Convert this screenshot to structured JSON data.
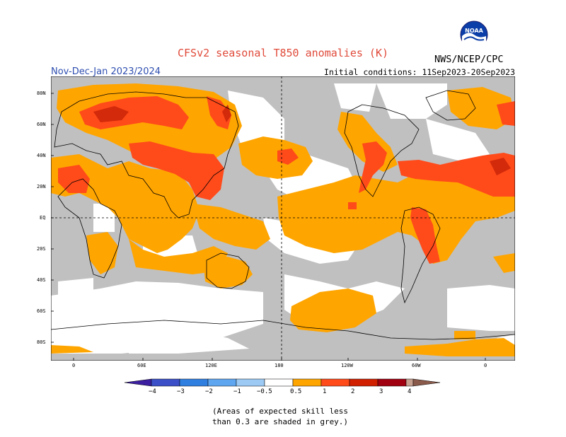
{
  "header": {
    "title": "CFSv2 seasonal T850 anomalies (K)",
    "season": "Nov-Dec-Jan 2023/2024",
    "initial_conditions": "Initial conditions: 11Sep2023-20Sep2023",
    "org": "NWS/NCEP/CPC",
    "logo_text": "NOAA"
  },
  "axes": {
    "lat_labels": [
      "80N",
      "60N",
      "40N",
      "20N",
      "EQ",
      "20S",
      "40S",
      "60S",
      "80S"
    ],
    "lon_labels": [
      "0",
      "60E",
      "120E",
      "180",
      "120W",
      "60W",
      "0"
    ]
  },
  "colorbar": {
    "labels": [
      "−4",
      "−3",
      "−2",
      "−1",
      "−0.5",
      "0.5",
      "1",
      "2",
      "3",
      "4"
    ],
    "colors": {
      "neg4": "#3b1fa0",
      "neg3": "#3a4fc8",
      "neg2": "#2f7fe0",
      "neg1": "#5ea6f0",
      "neg05": "#9ccaf5",
      "mid": "#ffffff",
      "p05": "#ffa500",
      "p1": "#ff4a1a",
      "p2": "#d02000",
      "p3": "#a00010",
      "p4": "#c8a090",
      "p5": "#8a5a4a"
    }
  },
  "map_colors": {
    "grey": "#c0c0c0",
    "orange": "#ffa500",
    "red": "#ff4a1a",
    "darkred": "#d22a0a"
  },
  "note": {
    "line1": "(Areas of expected skill less",
    "line2": "than 0.3 are shaded in grey.)"
  }
}
